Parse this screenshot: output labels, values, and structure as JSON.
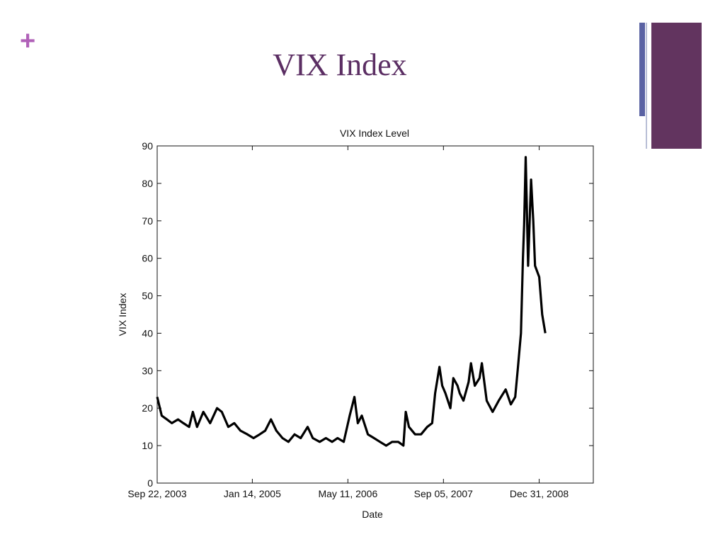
{
  "slide": {
    "title": "VIX Index",
    "plus_glyph": "+",
    "accent_color": "#b061b8",
    "title_color": "#5b2e63",
    "deco_block_color": "#62345f",
    "deco_bar_color": "#5a62a3"
  },
  "chart_data": {
    "type": "line",
    "title": "VIX Index Level",
    "xlabel": "Date",
    "ylabel": "VIX Index",
    "ylim": [
      0,
      90
    ],
    "yticks": [
      0,
      10,
      20,
      30,
      40,
      50,
      60,
      70,
      80,
      90
    ],
    "xlim": [
      "2003-09-22",
      "2009-09-30"
    ],
    "xticks": [
      {
        "date": "2003-09-22",
        "label": "Sep 22, 2003"
      },
      {
        "date": "2005-01-14",
        "label": "Jan 14, 2005"
      },
      {
        "date": "2006-05-11",
        "label": "May 11, 2006"
      },
      {
        "date": "2007-09-05",
        "label": "Sep 05, 2007"
      },
      {
        "date": "2008-12-31",
        "label": "Dec 31, 2008"
      }
    ],
    "grid": false,
    "line_color": "#000000",
    "series": [
      {
        "x": [
          "2003-09-22",
          "2003-10-15",
          "2003-11-10",
          "2003-12-05",
          "2004-01-05",
          "2004-02-01",
          "2004-03-01",
          "2004-03-20",
          "2004-04-10",
          "2004-05-12",
          "2004-06-15",
          "2004-07-20",
          "2004-08-13",
          "2004-09-15",
          "2004-10-15",
          "2004-11-15",
          "2004-12-20",
          "2005-01-20",
          "2005-02-20",
          "2005-03-20",
          "2005-04-18",
          "2005-05-15",
          "2005-06-15",
          "2005-07-15",
          "2005-08-15",
          "2005-09-15",
          "2005-10-20",
          "2005-11-15",
          "2005-12-20",
          "2006-01-20",
          "2006-02-20",
          "2006-03-20",
          "2006-04-20",
          "2006-05-20",
          "2006-06-13",
          "2006-06-30",
          "2006-07-20",
          "2006-08-20",
          "2006-09-20",
          "2006-10-20",
          "2006-11-20",
          "2006-12-20",
          "2007-01-20",
          "2007-02-15",
          "2007-02-27",
          "2007-03-15",
          "2007-04-15",
          "2007-05-15",
          "2007-06-15",
          "2007-07-10",
          "2007-07-25",
          "2007-08-16",
          "2007-08-30",
          "2007-09-15",
          "2007-10-10",
          "2007-10-25",
          "2007-11-15",
          "2007-11-26",
          "2007-12-15",
          "2008-01-10",
          "2008-01-22",
          "2008-02-10",
          "2008-03-05",
          "2008-03-17",
          "2008-04-10",
          "2008-05-10",
          "2008-06-10",
          "2008-07-15",
          "2008-08-10",
          "2008-09-01",
          "2008-09-15",
          "2008-09-30",
          "2008-10-10",
          "2008-10-16",
          "2008-10-24",
          "2008-11-05",
          "2008-11-20",
          "2008-12-01",
          "2008-12-10",
          "2008-12-31",
          "2009-01-15",
          "2009-01-31"
        ],
        "values": [
          23,
          18,
          17,
          16,
          17,
          16,
          15,
          19,
          15,
          19,
          16,
          20,
          19,
          15,
          16,
          14,
          13,
          12,
          13,
          14,
          17,
          14,
          12,
          11,
          13,
          12,
          15,
          12,
          11,
          12,
          11,
          12,
          11,
          18,
          23,
          16,
          18,
          13,
          12,
          11,
          10,
          11,
          11,
          10,
          19,
          15,
          13,
          13,
          15,
          16,
          24,
          31,
          26,
          24,
          20,
          28,
          26,
          24,
          22,
          27,
          32,
          26,
          28,
          32,
          22,
          19,
          22,
          25,
          21,
          23,
          31,
          40,
          60,
          69,
          87,
          58,
          81,
          70,
          58,
          55,
          45,
          40
        ]
      }
    ]
  }
}
